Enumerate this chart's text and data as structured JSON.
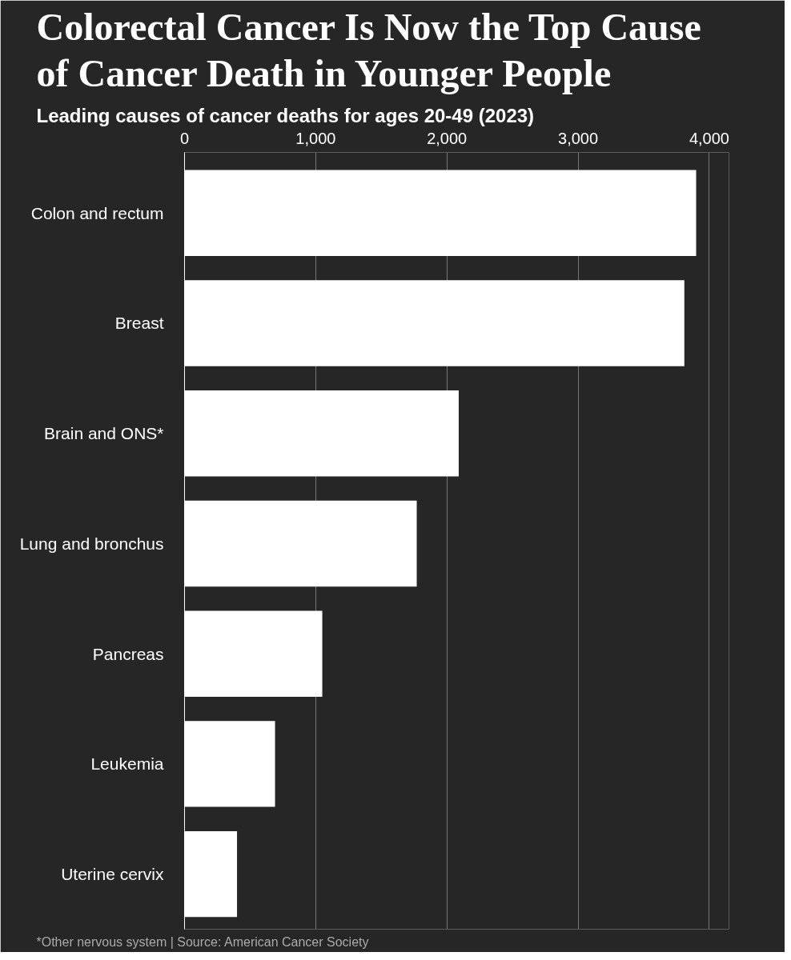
{
  "chart_data": {
    "type": "bar",
    "orientation": "horizontal",
    "title": "Colorectal Cancer Is Now the Top Cause\nof Cancer Death in Younger People",
    "subtitle": "Leading causes of cancer deaths for ages 20-49 (2023)",
    "categories": [
      "Colon and rectum",
      "Breast",
      "Brain and ONS*",
      "Lung and bronchus",
      "Pancreas",
      "Leukemia",
      "Uterine cervix"
    ],
    "values": [
      3900,
      3810,
      2090,
      1770,
      1050,
      690,
      400
    ],
    "color": "#ffffff",
    "xlim": [
      0,
      4150
    ],
    "xticks": [
      0,
      {
        "value": 1000,
        "label": "1,000"
      },
      {
        "value": 2000,
        "label": "2,000"
      },
      {
        "value": 3000,
        "label": "3,000"
      },
      {
        "value": 4000,
        "label": "4,000"
      }
    ],
    "grid": "x",
    "annotations": [
      "*Other nervous system | Source: American Cancer Society"
    ]
  }
}
